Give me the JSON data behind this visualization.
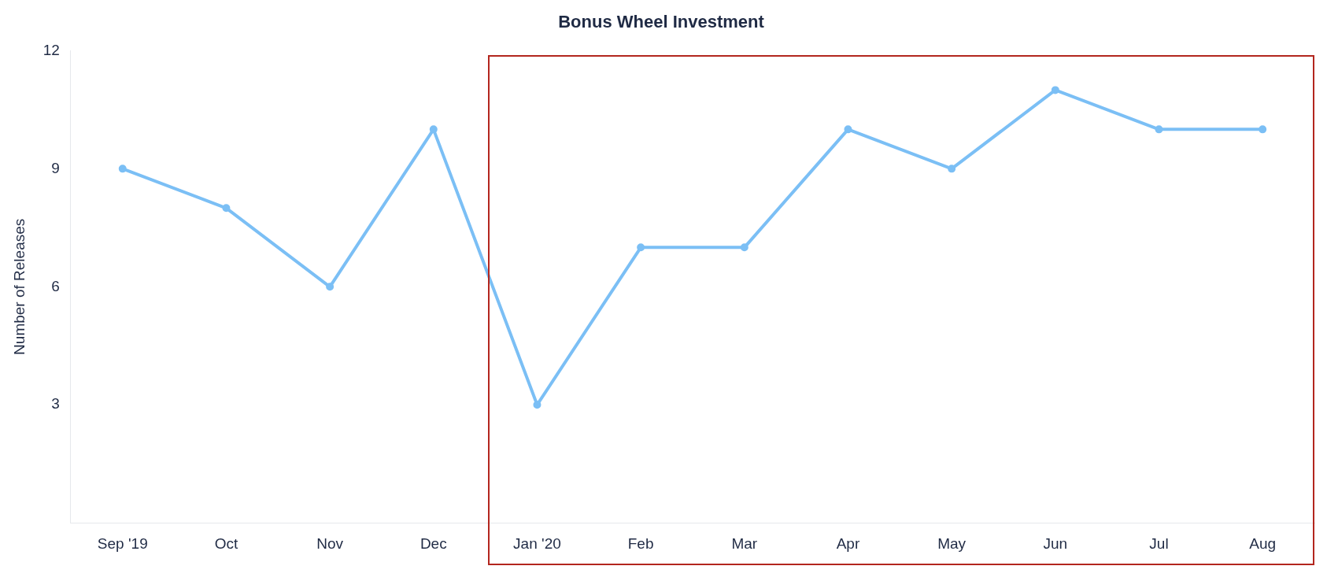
{
  "chart_data": {
    "type": "line",
    "title": "Bonus Wheel Investment",
    "ylabel": "Number of Releases",
    "categories": [
      "Sep '19",
      "Oct",
      "Nov",
      "Dec",
      "Jan '20",
      "Feb",
      "Mar",
      "Apr",
      "May",
      "Jun",
      "Jul",
      "Aug"
    ],
    "series": [
      {
        "color": "#7bbff5",
        "values": [
          9,
          8,
          6,
          10,
          3,
          7,
          7,
          10,
          9,
          11,
          10,
          10
        ]
      }
    ],
    "ylim": [
      0,
      12
    ],
    "yticks": [
      3,
      6,
      9,
      12
    ],
    "marker": "circle"
  }
}
